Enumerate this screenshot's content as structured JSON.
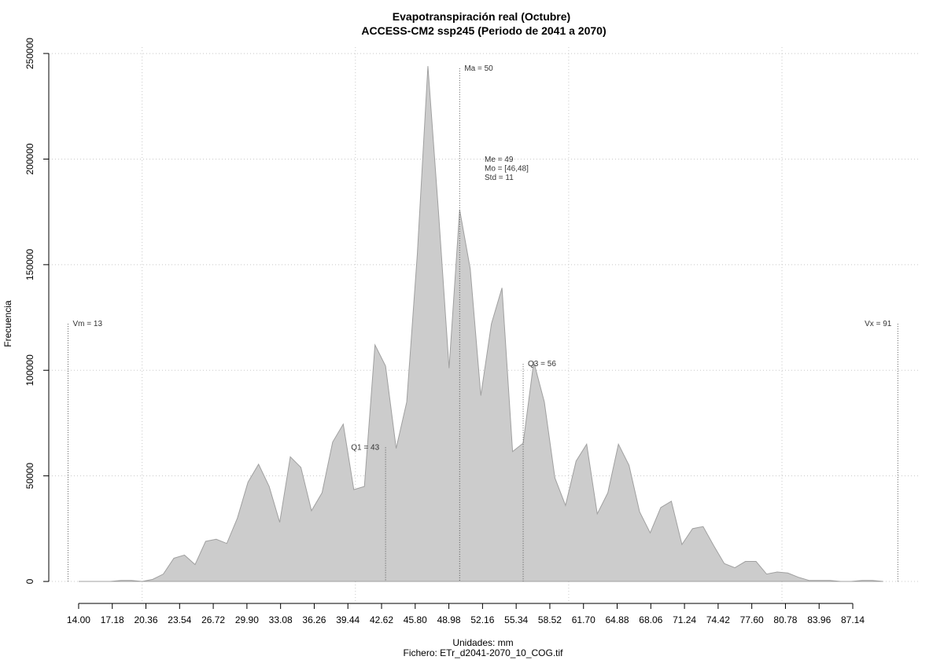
{
  "chart_data": {
    "type": "area",
    "title": "Evapotranspiración real (Octubre)",
    "subtitle": "ACCESS-CM2 ssp245 (Periodo de 2041 a 2070)",
    "x_label": "Unidades: mm",
    "caption": "Fichero: ETr_d2041-2070_10_COG.tif",
    "y_label": "Frecuencia",
    "color": "#cccccc",
    "line_color": "#a0a0a0",
    "grid": true,
    "x": [
      14,
      15,
      16,
      17,
      18,
      19,
      20,
      21,
      22,
      23,
      24,
      25,
      26,
      27,
      28,
      29,
      30,
      31,
      32,
      33,
      34,
      35,
      36,
      37,
      38,
      39,
      40,
      41,
      42,
      43,
      44,
      45,
      46,
      47,
      48,
      49,
      50,
      51,
      52,
      53,
      54,
      55,
      56,
      57,
      58,
      59,
      60,
      61,
      62,
      63,
      64,
      65,
      66,
      67,
      68,
      69,
      70,
      71,
      72,
      73,
      74,
      75,
      76,
      77,
      78,
      79,
      80,
      81,
      82,
      83,
      84,
      85,
      86,
      87,
      88,
      89,
      90
    ],
    "values": [
      0,
      0,
      0,
      0,
      500,
      500,
      0,
      1000,
      3500,
      11000,
      12500,
      8000,
      19000,
      20000,
      18000,
      30000,
      47000,
      55500,
      45000,
      28000,
      59000,
      54000,
      33500,
      42000,
      66000,
      74500,
      43500,
      45000,
      112000,
      102000,
      63000,
      85000,
      155000,
      244000,
      175000,
      101000,
      176000,
      148000,
      88000,
      122000,
      139000,
      61500,
      65500,
      104000,
      85000,
      49000,
      36000,
      57000,
      65000,
      32000,
      42000,
      65000,
      55000,
      33000,
      23000,
      35000,
      38000,
      17500,
      25000,
      26000,
      17000,
      8500,
      6500,
      9500,
      9500,
      3500,
      4500,
      4000,
      2000,
      500,
      500,
      500,
      0,
      0,
      500,
      500,
      0
    ],
    "xlim": [
      11.18,
      93.53
    ],
    "ylim": [
      -10400,
      253000
    ],
    "xticks": [
      {
        "value": 14,
        "label": "14.00"
      },
      17.18,
      20.36,
      23.54,
      26.72,
      {
        "value": 29.9,
        "label": "29.90"
      },
      33.08,
      36.26,
      39.44,
      42.62,
      {
        "value": 45.8,
        "label": "45.80"
      },
      48.98,
      52.16,
      55.34,
      58.52,
      {
        "value": 61.7,
        "label": "61.70"
      },
      64.88,
      68.06,
      71.24,
      74.42,
      {
        "value": 77.6,
        "label": "77.60"
      },
      80.78,
      83.96,
      87.14
    ],
    "yticks": [
      0,
      50000,
      100000,
      150000,
      200000,
      250000
    ],
    "xgrid": [
      20,
      40.15,
      60.3,
      80.45
    ],
    "annotations": [
      {
        "label": "Vm = 13",
        "x": 13,
        "y": 122000
      },
      {
        "label": "Q1 = 43",
        "x": 43,
        "y": 63500
      },
      {
        "label": "Ma = 50",
        "x": 50,
        "y": 243000
      },
      {
        "label": "Q3 = 56",
        "x": 56,
        "y": 103000
      },
      {
        "label": "Vx = 91",
        "x": 91.4,
        "y": 122000
      }
    ],
    "stats": [
      "Me = 49",
      "Mo = [46,48]",
      "Std = 11"
    ]
  }
}
